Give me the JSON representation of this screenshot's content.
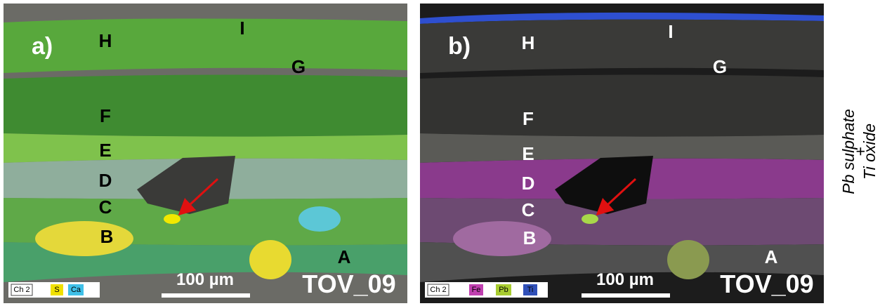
{
  "panels": [
    {
      "label": "a)",
      "layers": [
        "H",
        "I",
        "G",
        "F",
        "E",
        "D",
        "C",
        "B",
        "A"
      ],
      "legend": [
        "Ch 2",
        "S",
        "Ca"
      ],
      "scale_bar": "100 µm",
      "sample": "TOV_09"
    },
    {
      "label": "b)",
      "layers": [
        "H",
        "I",
        "G",
        "F",
        "E",
        "D",
        "C",
        "B",
        "A"
      ],
      "legend": [
        "Ch 2",
        "Fe",
        "Pb",
        "Ti"
      ],
      "scale_bar": "100 µm",
      "sample": "TOV_09"
    }
  ],
  "side_note": [
    "Pb sulphate",
    "+",
    "Ti oxide"
  ]
}
